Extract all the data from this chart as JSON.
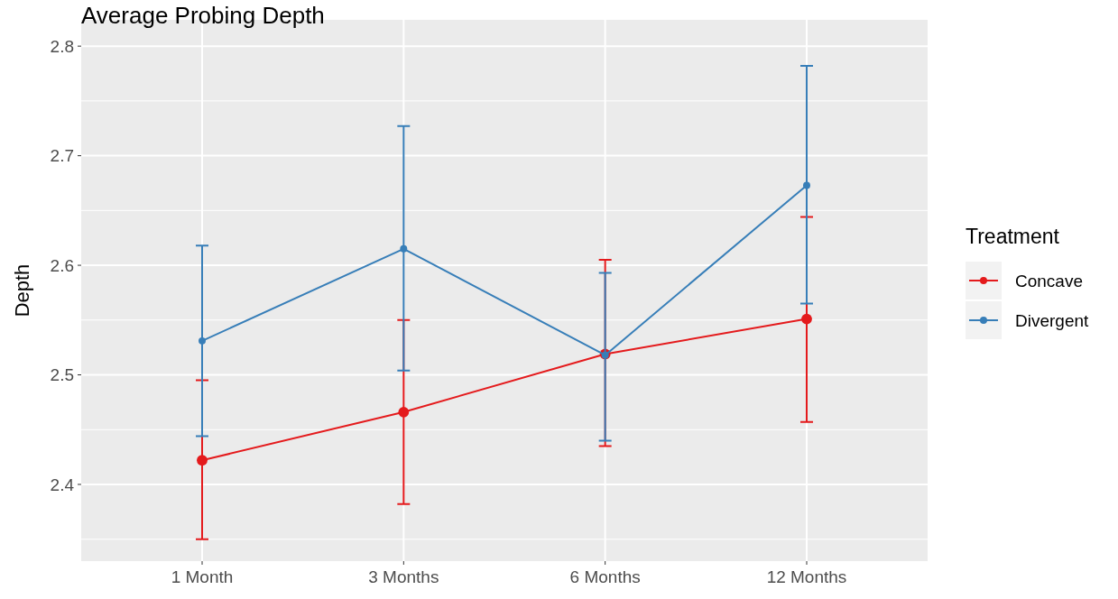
{
  "chart_data": {
    "type": "line",
    "title": "Average Probing Depth",
    "ylabel": "Depth",
    "legend_title": "Treatment",
    "categories": [
      "1 Month",
      "3 Months",
      "6 Months",
      "12 Months"
    ],
    "series": [
      {
        "name": "Concave",
        "color": "#e41a1c",
        "values": [
          2.422,
          2.466,
          2.519,
          2.551
        ],
        "errors": [
          [
            2.35,
            2.495
          ],
          [
            2.382,
            2.55
          ],
          [
            2.435,
            2.605
          ],
          [
            2.457,
            2.644
          ]
        ]
      },
      {
        "name": "Divergent",
        "color": "#377eb8",
        "values": [
          2.531,
          2.615,
          2.518,
          2.673
        ],
        "errors": [
          [
            2.444,
            2.618
          ],
          [
            2.504,
            2.727
          ],
          [
            2.44,
            2.593
          ],
          [
            2.565,
            2.782
          ]
        ]
      }
    ],
    "ylim": [
      2.33,
      2.824
    ],
    "yticks": [
      2.4,
      2.5,
      2.6,
      2.7,
      2.8
    ],
    "grid": true,
    "legend": "right",
    "marker": "circle",
    "line_style": "solid"
  }
}
